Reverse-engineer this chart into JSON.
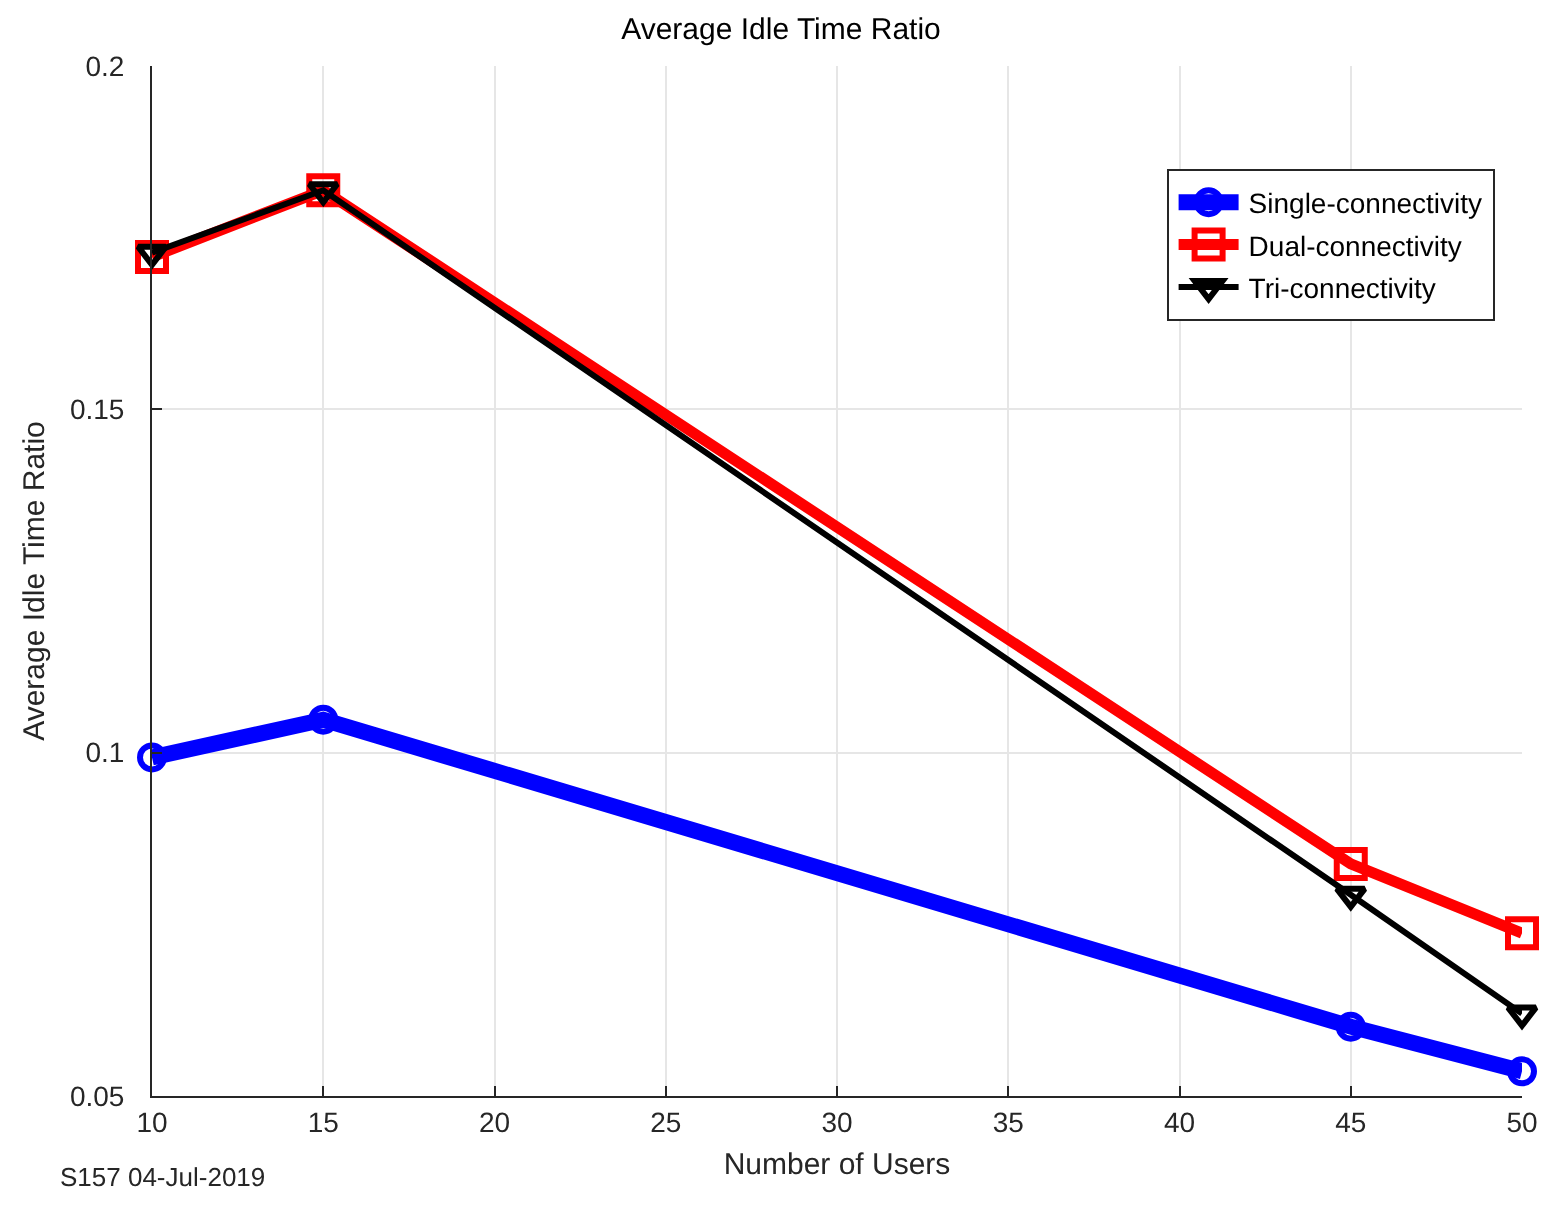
{
  "chart_data": {
    "type": "line",
    "title": "Average Idle Time Ratio",
    "xlabel": "Number of Users",
    "ylabel": "Average Idle Time Ratio",
    "x": [
      10,
      15,
      45,
      50
    ],
    "series": [
      {
        "name": "Single-connectivity",
        "color": "#0000ff",
        "marker": "circle",
        "values": [
          0.0993,
          0.1048,
          0.0601,
          0.0536
        ]
      },
      {
        "name": "Dual-connectivity",
        "color": "#ff0000",
        "marker": "square",
        "values": [
          0.1722,
          0.1819,
          0.0838,
          0.0737
        ]
      },
      {
        "name": "Tri-connectivity",
        "color": "#000000",
        "marker": "triangle",
        "values": [
          0.1728,
          0.1819,
          0.0793,
          0.062
        ]
      }
    ],
    "xlim": [
      10,
      50
    ],
    "xticks": [
      10,
      15,
      20,
      25,
      30,
      35,
      40,
      45,
      50
    ],
    "ylim": [
      0.05,
      0.2
    ],
    "yticks": [
      {
        "value": 0.05,
        "label": "0.05"
      },
      {
        "value": 0.1,
        "label": "0.1"
      },
      {
        "value": 0.15,
        "label": "0.15"
      },
      {
        "value": 0.2,
        "label": "0.2"
      }
    ],
    "grid": true,
    "legend": "top right",
    "line_style": "solid",
    "annotations": [
      "S157 04-Jul-2019"
    ]
  }
}
